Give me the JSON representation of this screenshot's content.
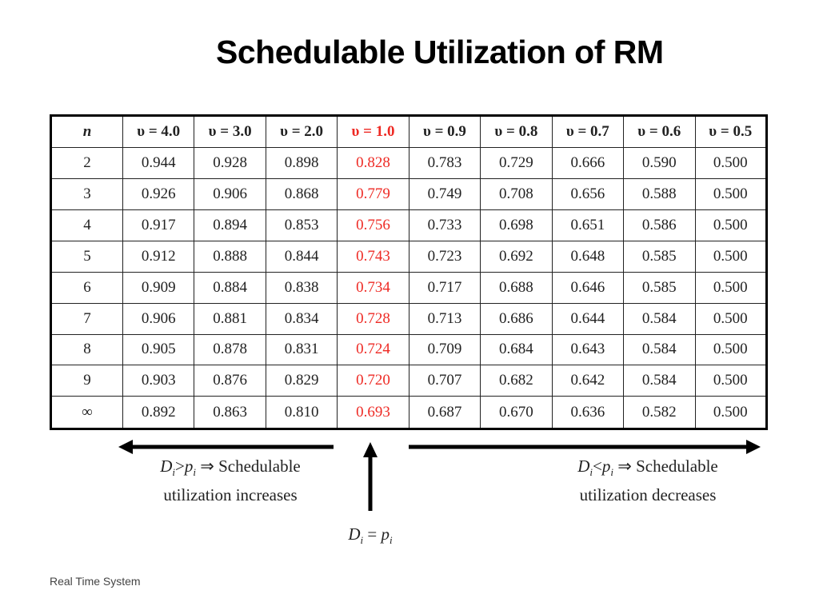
{
  "title": "Schedulable Utilization of RM",
  "table": {
    "corner": "n",
    "headers": [
      "υ = 4.0",
      "υ = 3.0",
      "υ = 2.0",
      "υ = 1.0",
      "υ = 0.9",
      "υ = 0.8",
      "υ = 0.7",
      "υ = 0.6",
      "υ = 0.5"
    ],
    "highlight_column": 3,
    "highlight_color": "#ee2a24",
    "rows": [
      {
        "n": "2",
        "values": [
          "0.944",
          "0.928",
          "0.898",
          "0.828",
          "0.783",
          "0.729",
          "0.666",
          "0.590",
          "0.500"
        ]
      },
      {
        "n": "3",
        "values": [
          "0.926",
          "0.906",
          "0.868",
          "0.779",
          "0.749",
          "0.708",
          "0.656",
          "0.588",
          "0.500"
        ]
      },
      {
        "n": "4",
        "values": [
          "0.917",
          "0.894",
          "0.853",
          "0.756",
          "0.733",
          "0.698",
          "0.651",
          "0.586",
          "0.500"
        ]
      },
      {
        "n": "5",
        "values": [
          "0.912",
          "0.888",
          "0.844",
          "0.743",
          "0.723",
          "0.692",
          "0.648",
          "0.585",
          "0.500"
        ]
      },
      {
        "n": "6",
        "values": [
          "0.909",
          "0.884",
          "0.838",
          "0.734",
          "0.717",
          "0.688",
          "0.646",
          "0.585",
          "0.500"
        ]
      },
      {
        "n": "7",
        "values": [
          "0.906",
          "0.881",
          "0.834",
          "0.728",
          "0.713",
          "0.686",
          "0.644",
          "0.584",
          "0.500"
        ]
      },
      {
        "n": "8",
        "values": [
          "0.905",
          "0.878",
          "0.831",
          "0.724",
          "0.709",
          "0.684",
          "0.643",
          "0.584",
          "0.500"
        ]
      },
      {
        "n": "9",
        "values": [
          "0.903",
          "0.876",
          "0.829",
          "0.720",
          "0.707",
          "0.682",
          "0.642",
          "0.584",
          "0.500"
        ]
      },
      {
        "n": "∞",
        "values": [
          "0.892",
          "0.863",
          "0.810",
          "0.693",
          "0.687",
          "0.670",
          "0.636",
          "0.582",
          "0.500"
        ]
      }
    ]
  },
  "annotations": {
    "left": {
      "d": "D",
      "sub": "i",
      "op": ">",
      "p": "p",
      "sub2": "i",
      "line1_rest": " ⇒ Schedulable",
      "line2": "utilization increases"
    },
    "right": {
      "d": "D",
      "sub": "i",
      "op": "<",
      "p": "p",
      "sub2": "i",
      "line1_rest": " ⇒ Schedulable",
      "line2": "utilization decreases"
    },
    "center": {
      "d": "D",
      "sub": "i",
      "op": " = ",
      "p": "p",
      "sub2": "i"
    }
  },
  "footer": "Real Time System"
}
